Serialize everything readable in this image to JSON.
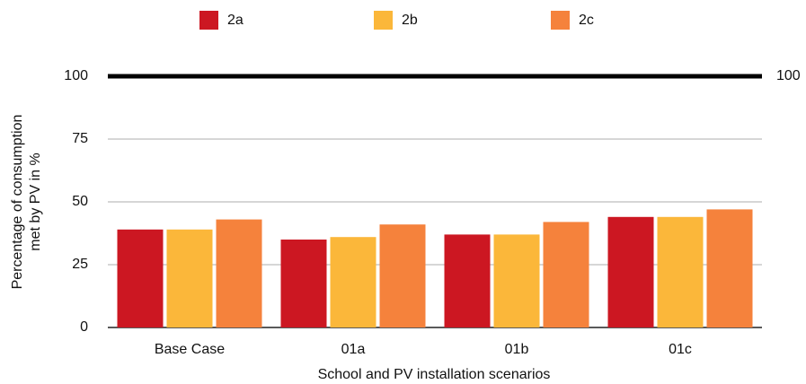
{
  "chart_data": {
    "type": "bar",
    "categories": [
      "Base Case",
      "01a",
      "01b",
      "01c"
    ],
    "series": [
      {
        "name": "2a",
        "color": "#cc1722",
        "values": [
          39,
          35,
          37,
          44
        ]
      },
      {
        "name": "2b",
        "color": "#fbb73a",
        "values": [
          39,
          36,
          37,
          44
        ]
      },
      {
        "name": "2c",
        "color": "#f5823c",
        "values": [
          43,
          41,
          42,
          47
        ]
      }
    ],
    "ylim": [
      0,
      100
    ],
    "yticks": [
      0,
      25,
      50,
      75,
      100
    ],
    "y2lim": [
      0,
      100
    ],
    "y2ticks": [
      100
    ],
    "y_label": [
      "Percentage of consumption",
      "met by PV in %"
    ],
    "x_label": "School and PV installation scenarios",
    "grid": true,
    "legend": "top"
  }
}
